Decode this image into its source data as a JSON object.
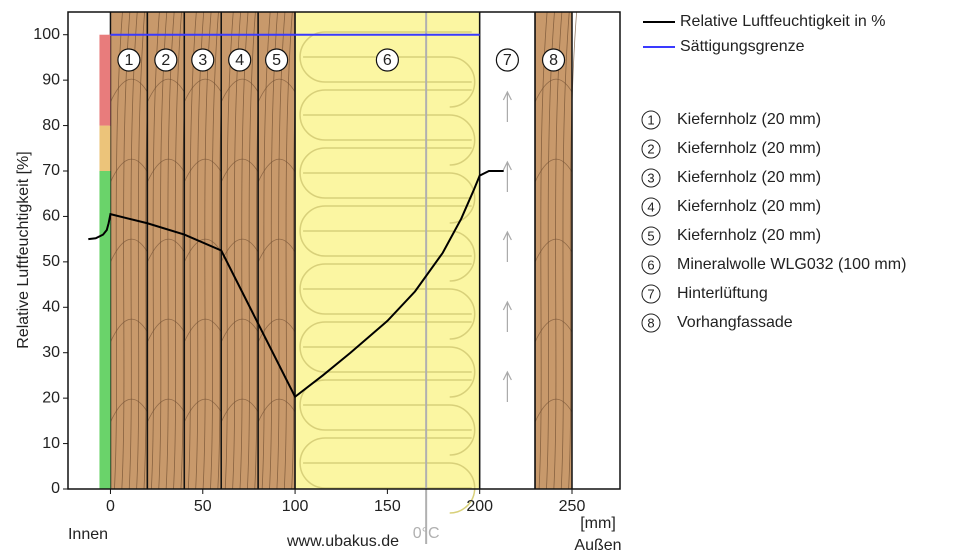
{
  "chart_data": {
    "type": "line",
    "y_label": "Relative Luftfeuchtigkeit [%]",
    "x_unit": "[mm]",
    "inside_label": "Innen",
    "outside_label": "Außen",
    "watermark": "www.ubakus.de",
    "zero_line": {
      "label": "0°C",
      "x": 171,
      "color": "#b0b0b0"
    },
    "xlim": [
      -23,
      276
    ],
    "ylim": [
      0,
      105
    ],
    "xticks": [
      0,
      50,
      100,
      150,
      200,
      250
    ],
    "yticks": [
      0,
      10,
      20,
      30,
      40,
      50,
      60,
      70,
      80,
      90,
      100
    ],
    "humidity_zones": [
      {
        "from": 0,
        "to": 70,
        "color": "#6ad36a"
      },
      {
        "from": 70,
        "to": 80,
        "color": "#ecc47a"
      },
      {
        "from": 80,
        "to": 100,
        "color": "#e87c7c"
      }
    ],
    "layers": [
      {
        "label": "1",
        "name": "Kiefernholz (20 mm)",
        "start": 0,
        "end": 20,
        "color": "#c8996b"
      },
      {
        "label": "2",
        "name": "Kiefernholz (20 mm)",
        "start": 20,
        "end": 40,
        "color": "#c8996b"
      },
      {
        "label": "3",
        "name": "Kiefernholz (20 mm)",
        "start": 40,
        "end": 60,
        "color": "#c8996b"
      },
      {
        "label": "4",
        "name": "Kiefernholz (20 mm)",
        "start": 60,
        "end": 80,
        "color": "#c8996b"
      },
      {
        "label": "5",
        "name": "Kiefernholz (20 mm)",
        "start": 80,
        "end": 100,
        "color": "#c8996b"
      },
      {
        "label": "6",
        "name": "Mineralwolle WLG032 (100 mm)",
        "start": 100,
        "end": 200,
        "color": "#fbf6a2"
      },
      {
        "label": "7",
        "name": "Hinterlüftung",
        "start": 200,
        "end": 230,
        "color": "#ffffff"
      },
      {
        "label": "8",
        "name": "Vorhangfassade",
        "start": 230,
        "end": 250,
        "color": "#c8996b"
      }
    ],
    "series": [
      {
        "name": "Relative Luftfeuchtigkeit in %",
        "color": "#000000",
        "x": [
          -12,
          -8,
          -4,
          -2,
          -1,
          0,
          20,
          40,
          60,
          100,
          115,
          130,
          150,
          165,
          180,
          190,
          197,
          200,
          205,
          213
        ],
        "values": [
          55,
          55.2,
          56,
          57,
          58.5,
          60.5,
          58.5,
          56,
          52.5,
          20.3,
          25,
          30,
          37,
          43.5,
          52,
          59.5,
          66,
          69,
          70,
          70
        ]
      },
      {
        "name": "Sättigungsgrenze",
        "color": "#3a3aff",
        "x": [
          0,
          200
        ],
        "values": [
          100,
          100
        ]
      }
    ]
  }
}
